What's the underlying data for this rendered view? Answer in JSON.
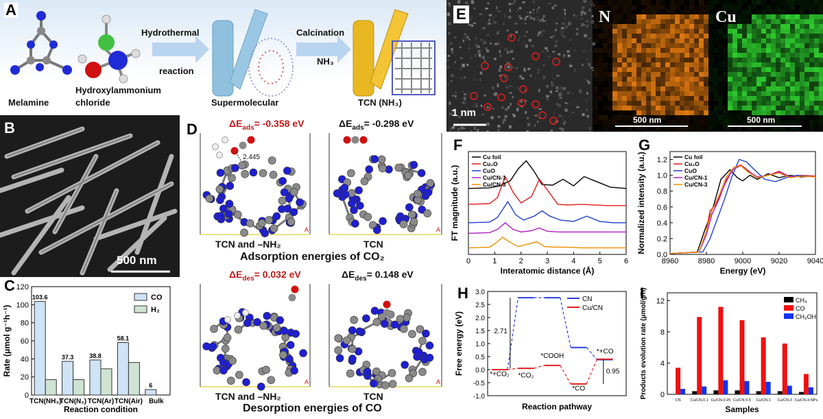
{
  "panels": {
    "a": "A",
    "b": "B",
    "c": "C",
    "d": "D",
    "e": "E",
    "f": "F",
    "g": "G",
    "h": "H",
    "i": "I"
  },
  "scheme": {
    "melamine": "Melamine",
    "hydroxylammonium_line1": "Hydroxylammonium",
    "hydroxylammonium_line2": "chloride",
    "step1_line1": "Hydrothermal",
    "step1_line2": "reaction",
    "supermolecular": "Supermolecular",
    "step2_line1": "Calcination",
    "step2_line2": "NH₃",
    "tcn": "TCN (NH₃)"
  },
  "sem_b": {
    "scale": "500 nm"
  },
  "dft": {
    "ads_left": "ΔEₐₓₛ= -0.358 eV",
    "ads_left_sym": "ΔE",
    "ads_left_sub": "ads",
    "ads_left_val": "= -0.358 eV",
    "ads_right_sym": "ΔE",
    "ads_right_sub": "ads",
    "ads_right_val": "= -0.298 eV",
    "des_left_sym": "ΔE",
    "des_left_sub": "des",
    "des_left_val": "= 0.032 eV",
    "des_right_sym": "ΔE",
    "des_right_sub": "des",
    "des_right_val": "= 0.148 eV",
    "bond_length": "2.445",
    "struct_left": "TCN and –NH₂",
    "struct_right": "TCN",
    "ads_title": "Adsorption energies of CO₂",
    "des_title": "Desorption energies of CO",
    "corner_label": "A"
  },
  "eds_e": {
    "scale_haadf": "1 nm",
    "n_label": "N",
    "cu_label": "Cu",
    "scale_n": "500 nm",
    "scale_cu": "500 nm"
  },
  "colors": {
    "co_bar": "#cfe3f7",
    "h2_bar": "#cfe3d3",
    "cu_foil": "#000000",
    "cu2o": "#e41a1c",
    "cuo": "#1f3fd0",
    "cucn1": "#b020c0",
    "cucn3": "#f08c00",
    "cn_line": "#2a3fd6",
    "cucn_line": "#e12020",
    "ch4": "#000000",
    "co": "#ee1111",
    "ch3oh": "#1133ee"
  },
  "chart_data": [
    {
      "id": "C",
      "type": "bar",
      "categories": [
        "TCN(NH₃)",
        "TCN(N₂)",
        "TCN(Ar)",
        "TCN(Air)",
        "Bulk"
      ],
      "series": [
        {
          "name": "CO",
          "values": [
            103.6,
            37.3,
            38.8,
            58.1,
            6
          ]
        },
        {
          "name": "H₂",
          "values": [
            17,
            17,
            29,
            36,
            0
          ]
        }
      ],
      "data_labels": [
        "103.6",
        "37.3",
        "38.8",
        "58.1",
        "6"
      ],
      "xlabel": "Reaction condition",
      "ylabel": "Rate (μmol g⁻¹h⁻¹)",
      "ylim": [
        0,
        120
      ],
      "yticks": [
        0,
        20,
        40,
        60,
        80,
        100,
        120
      ],
      "legend": "top-right"
    },
    {
      "id": "F",
      "type": "line",
      "xlabel": "Interatomic distance (Å)",
      "ylabel": "FT magnitude (a.u.)",
      "xlim": [
        0,
        6
      ],
      "xticks": [
        0,
        1,
        2,
        3,
        4,
        5,
        6
      ],
      "legend": "top-left",
      "series": [
        {
          "name": "Cu foil",
          "x": [
            0,
            0.8,
            1.2,
            1.6,
            1.9,
            2.2,
            2.5,
            2.8,
            3.2,
            3.6,
            4.0,
            4.4,
            4.9,
            5.4,
            6
          ],
          "y": [
            5.0,
            5.05,
            5.2,
            5.6,
            6.5,
            7.1,
            6.3,
            5.3,
            5.25,
            5.7,
            5.2,
            5.9,
            5.5,
            5.1,
            5.0
          ]
        },
        {
          "name": "Cu₂O",
          "x": [
            0,
            0.8,
            1.1,
            1.4,
            1.7,
            2.0,
            2.4,
            2.7,
            3.0,
            3.4,
            3.8,
            4.3,
            4.8,
            5.3,
            6
          ],
          "y": [
            3.8,
            3.85,
            4.3,
            5.9,
            4.7,
            3.9,
            4.4,
            5.7,
            4.9,
            3.8,
            3.75,
            3.8,
            3.75,
            3.7,
            3.7
          ]
        },
        {
          "name": "CuO",
          "x": [
            0,
            0.8,
            1.1,
            1.5,
            1.8,
            2.1,
            2.5,
            2.8,
            3.1,
            3.5,
            4.0,
            4.5,
            5.0,
            5.5,
            6
          ],
          "y": [
            2.4,
            2.45,
            2.8,
            4.0,
            3.0,
            2.6,
            2.9,
            3.3,
            2.9,
            2.6,
            2.5,
            2.9,
            2.5,
            2.4,
            2.4
          ]
        },
        {
          "name": "Cu/CN-1",
          "x": [
            0,
            0.8,
            1.1,
            1.4,
            1.7,
            2.0,
            2.4,
            2.7,
            3.0,
            3.5,
            4.0,
            4.5,
            5.0,
            5.5,
            6
          ],
          "y": [
            1.6,
            1.65,
            1.9,
            2.4,
            1.9,
            1.7,
            1.8,
            2.0,
            1.75,
            1.7,
            1.7,
            1.7,
            1.7,
            1.7,
            1.7
          ]
        },
        {
          "name": "Cu/CN-3",
          "x": [
            0,
            0.8,
            1.0,
            1.3,
            1.6,
            1.9,
            2.2,
            2.6,
            2.9,
            3.3,
            3.8,
            4.3,
            4.8,
            5.3,
            6
          ],
          "y": [
            0.5,
            0.55,
            0.8,
            1.3,
            0.9,
            0.6,
            0.75,
            0.95,
            0.6,
            0.55,
            0.55,
            0.5,
            0.5,
            0.5,
            0.5
          ]
        }
      ]
    },
    {
      "id": "G",
      "type": "line",
      "xlabel": "Energy (eV)",
      "ylabel": "Normalized intensity (a.u.)",
      "xlim": [
        8960,
        9040
      ],
      "ylim": [
        0.0,
        1.3
      ],
      "xticks": [
        8960,
        8980,
        9000,
        9020,
        9040
      ],
      "yticks": [
        0.0,
        0.2,
        0.4,
        0.6,
        0.8,
        1.0,
        1.2
      ],
      "legend": "top-left",
      "series": [
        {
          "name": "Cu foil",
          "x": [
            8960,
            8975,
            8979,
            8981,
            8984,
            8988,
            8993,
            8997,
            9000,
            9004,
            9008,
            9014,
            9020,
            9026,
            9032,
            9040
          ],
          "y": [
            0.01,
            0.03,
            0.3,
            0.42,
            0.62,
            0.95,
            1.07,
            0.97,
            0.93,
            1.0,
            0.95,
            1.02,
            0.97,
            1.0,
            0.98,
            0.99
          ]
        },
        {
          "name": "Cu₂O",
          "x": [
            8960,
            8976,
            8980,
            8982,
            8985,
            8990,
            8995,
            8999,
            9003,
            9008,
            9014,
            9020,
            9026,
            9032,
            9040
          ],
          "y": [
            0.01,
            0.03,
            0.3,
            0.55,
            0.62,
            0.88,
            1.1,
            1.13,
            1.06,
            0.97,
            1.0,
            1.05,
            0.98,
            1.0,
            0.99
          ]
        },
        {
          "name": "CuO",
          "x": [
            8960,
            8978,
            8982,
            8986,
            8990,
            8994,
            8998,
            9002,
            9006,
            9012,
            9018,
            9024,
            9030,
            9040
          ],
          "y": [
            0.01,
            0.03,
            0.2,
            0.45,
            0.7,
            0.98,
            1.2,
            1.17,
            1.08,
            0.95,
            0.92,
            0.97,
            1.0,
            0.98
          ]
        },
        {
          "name": "Cu/CN-1",
          "x": [
            8960,
            8976,
            8980,
            8983,
            8987,
            8991,
            8995,
            8999,
            9003,
            9008,
            9014,
            9020,
            9026,
            9032,
            9040
          ],
          "y": [
            0.01,
            0.03,
            0.25,
            0.5,
            0.7,
            0.95,
            1.08,
            1.12,
            1.05,
            0.98,
            1.0,
            1.04,
            0.98,
            0.99,
            0.98
          ]
        },
        {
          "name": "Cu/CN-3",
          "x": [
            8960,
            8976,
            8980,
            8983,
            8987,
            8991,
            8995,
            8999,
            9003,
            9008,
            9014,
            9020,
            9026,
            9032,
            9040
          ],
          "y": [
            0.01,
            0.03,
            0.3,
            0.55,
            0.75,
            0.98,
            1.1,
            1.12,
            1.04,
            0.97,
            1.0,
            1.03,
            0.97,
            0.99,
            0.98
          ]
        }
      ]
    },
    {
      "id": "H",
      "type": "line",
      "xlabel": "Reaction pathway",
      "ylabel": "Free energy (eV)",
      "ylim": [
        -1.0,
        3.0
      ],
      "yticks": [
        -1.0,
        -0.5,
        0.0,
        0.5,
        1.0,
        1.5,
        2.0,
        2.5,
        3.0
      ],
      "legend": "top-right",
      "states": [
        "*+CO₂",
        "*CO₂",
        "*COOH",
        "*CO",
        "*+CO"
      ],
      "series": [
        {
          "name": "CN",
          "levels": [
            0.0,
            2.76,
            2.76,
            0.85,
            0.38
          ]
        },
        {
          "name": "Cu/CN",
          "levels": [
            0.0,
            0.05,
            0.16,
            -0.55,
            0.4
          ]
        }
      ],
      "annotations": [
        "2.71",
        "0.95"
      ]
    },
    {
      "id": "I",
      "type": "bar",
      "categories": [
        "CN",
        "Cu/CN-0.1",
        "Cu/CN-0.25",
        "Cu/CN-0.5",
        "Cu/CN-1",
        "Cu/CN-3",
        "Cu/CN-3-NPs"
      ],
      "series": [
        {
          "name": "CH₄",
          "values": [
            0.0,
            0.4,
            0.5,
            0.5,
            0.4,
            0.4,
            0.3
          ]
        },
        {
          "name": "CO",
          "values": [
            3.4,
            9.9,
            11.2,
            9.5,
            7.3,
            6.5,
            2.6
          ]
        },
        {
          "name": "CH₃OH",
          "values": [
            0.7,
            1.0,
            1.8,
            1.7,
            1.6,
            1.1,
            0.9
          ]
        }
      ],
      "xlabel": "Samples",
      "ylabel": "Products evolution rate (μmol/g/h)",
      "ylim": [
        0,
        13
      ],
      "yticks": [
        0,
        4,
        8,
        12
      ],
      "legend": "top-right"
    }
  ]
}
